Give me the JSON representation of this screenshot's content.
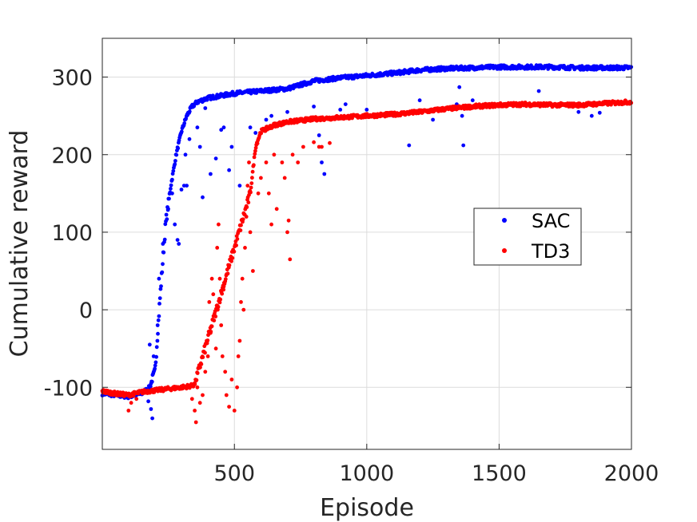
{
  "chart_data": {
    "type": "scatter",
    "title": "",
    "xlabel": "Episode",
    "ylabel": "Cumulative reward",
    "xlim": [
      1,
      2000
    ],
    "ylim": [
      -180,
      350
    ],
    "xticks": [
      500,
      1000,
      1500,
      2000
    ],
    "xtick_labels": [
      "500",
      "1000",
      "1500",
      "2000"
    ],
    "yticks": [
      -100,
      0,
      100,
      200,
      300
    ],
    "ytick_labels": [
      "-100",
      "0",
      "100",
      "200",
      "300"
    ],
    "grid": true,
    "legend_position": "right-middle",
    "series": [
      {
        "name": "SAC",
        "color": "#0000ff",
        "marker": "dot",
        "trend": [
          [
            1,
            -108
          ],
          [
            50,
            -110
          ],
          [
            100,
            -112
          ],
          [
            150,
            -108
          ],
          [
            180,
            -100
          ],
          [
            200,
            -80
          ],
          [
            220,
            20
          ],
          [
            240,
            110
          ],
          [
            260,
            160
          ],
          [
            280,
            200
          ],
          [
            300,
            230
          ],
          [
            320,
            250
          ],
          [
            340,
            262
          ],
          [
            360,
            268
          ],
          [
            400,
            273
          ],
          [
            450,
            276
          ],
          [
            500,
            279
          ],
          [
            600,
            282
          ],
          [
            700,
            285
          ],
          [
            800,
            295
          ],
          [
            900,
            299
          ],
          [
            1000,
            302
          ],
          [
            1100,
            305
          ],
          [
            1200,
            309
          ],
          [
            1300,
            311
          ],
          [
            1400,
            312
          ],
          [
            1500,
            313
          ],
          [
            1600,
            313
          ],
          [
            1700,
            313
          ],
          [
            1800,
            312
          ],
          [
            1900,
            312
          ],
          [
            2000,
            312
          ]
        ],
        "outliers": [
          [
            175,
            -118
          ],
          [
            180,
            -45
          ],
          [
            185,
            -128
          ],
          [
            190,
            -140
          ],
          [
            195,
            -60
          ],
          [
            210,
            -20
          ],
          [
            215,
            40
          ],
          [
            230,
            85
          ],
          [
            250,
            130
          ],
          [
            265,
            150
          ],
          [
            275,
            110
          ],
          [
            285,
            90
          ],
          [
            290,
            85
          ],
          [
            300,
            155
          ],
          [
            310,
            160
          ],
          [
            315,
            200
          ],
          [
            320,
            160
          ],
          [
            330,
            220
          ],
          [
            360,
            235
          ],
          [
            370,
            210
          ],
          [
            380,
            145
          ],
          [
            390,
            260
          ],
          [
            410,
            175
          ],
          [
            430,
            195
          ],
          [
            450,
            232
          ],
          [
            460,
            235
          ],
          [
            480,
            180
          ],
          [
            490,
            210
          ],
          [
            520,
            160
          ],
          [
            560,
            235
          ],
          [
            580,
            228
          ],
          [
            620,
            245
          ],
          [
            640,
            250
          ],
          [
            700,
            255
          ],
          [
            800,
            262
          ],
          [
            820,
            225
          ],
          [
            830,
            190
          ],
          [
            840,
            175
          ],
          [
            900,
            258
          ],
          [
            920,
            265
          ],
          [
            1000,
            258
          ],
          [
            1100,
            250
          ],
          [
            1160,
            212
          ],
          [
            1200,
            270
          ],
          [
            1250,
            245
          ],
          [
            1340,
            265
          ],
          [
            1350,
            287
          ],
          [
            1360,
            250
          ],
          [
            1365,
            212
          ],
          [
            1400,
            270
          ],
          [
            1650,
            282
          ],
          [
            1800,
            255
          ],
          [
            1850,
            250
          ],
          [
            1880,
            254
          ]
        ]
      },
      {
        "name": "TD3",
        "color": "#ff0000",
        "marker": "dot",
        "trend": [
          [
            1,
            -105
          ],
          [
            50,
            -108
          ],
          [
            100,
            -110
          ],
          [
            150,
            -106
          ],
          [
            200,
            -104
          ],
          [
            250,
            -102
          ],
          [
            300,
            -100
          ],
          [
            340,
            -98
          ],
          [
            350,
            -96
          ],
          [
            560,
            150
          ],
          [
            580,
            210
          ],
          [
            600,
            230
          ],
          [
            650,
            238
          ],
          [
            700,
            242
          ],
          [
            750,
            244
          ],
          [
            800,
            246
          ],
          [
            900,
            248
          ],
          [
            1000,
            250
          ],
          [
            1100,
            252
          ],
          [
            1200,
            255
          ],
          [
            1300,
            259
          ],
          [
            1400,
            262
          ],
          [
            1500,
            264
          ],
          [
            1600,
            265
          ],
          [
            1700,
            264
          ],
          [
            1800,
            264
          ],
          [
            1900,
            266
          ],
          [
            2000,
            268
          ]
        ],
        "outliers": [
          [
            100,
            -130
          ],
          [
            110,
            -120
          ],
          [
            130,
            -115
          ],
          [
            340,
            -115
          ],
          [
            350,
            -130
          ],
          [
            355,
            -145
          ],
          [
            360,
            -100
          ],
          [
            370,
            -120
          ],
          [
            380,
            -110
          ],
          [
            390,
            -80
          ],
          [
            395,
            -40
          ],
          [
            400,
            -60
          ],
          [
            405,
            10
          ],
          [
            410,
            -30
          ],
          [
            415,
            40
          ],
          [
            420,
            20
          ],
          [
            430,
            -50
          ],
          [
            435,
            80
          ],
          [
            440,
            110
          ],
          [
            445,
            40
          ],
          [
            450,
            -20
          ],
          [
            455,
            -60
          ],
          [
            460,
            30
          ],
          [
            465,
            -80
          ],
          [
            470,
            -110
          ],
          [
            480,
            -125
          ],
          [
            490,
            -90
          ],
          [
            500,
            -130
          ],
          [
            510,
            -100
          ],
          [
            515,
            -60
          ],
          [
            520,
            -40
          ],
          [
            525,
            10
          ],
          [
            530,
            40
          ],
          [
            535,
            0
          ],
          [
            540,
            80
          ],
          [
            545,
            120
          ],
          [
            550,
            160
          ],
          [
            555,
            190
          ],
          [
            560,
            100
          ],
          [
            570,
            50
          ],
          [
            590,
            150
          ],
          [
            600,
            170
          ],
          [
            620,
            190
          ],
          [
            630,
            150
          ],
          [
            640,
            110
          ],
          [
            650,
            200
          ],
          [
            660,
            130
          ],
          [
            680,
            190
          ],
          [
            690,
            170
          ],
          [
            700,
            100
          ],
          [
            705,
            115
          ],
          [
            710,
            65
          ],
          [
            720,
            200
          ],
          [
            740,
            190
          ],
          [
            760,
            210
          ],
          [
            800,
            216
          ],
          [
            820,
            210
          ],
          [
            830,
            210
          ],
          [
            860,
            215
          ]
        ]
      }
    ]
  }
}
